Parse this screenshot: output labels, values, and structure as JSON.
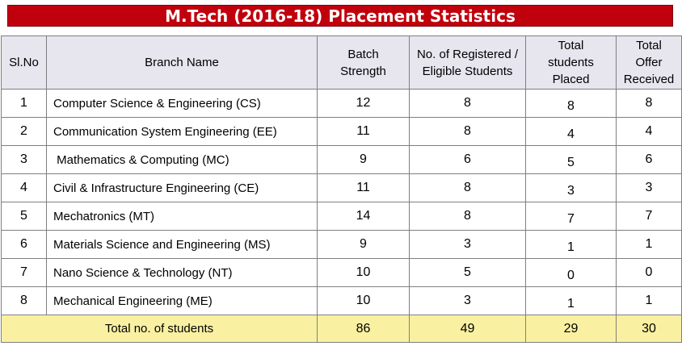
{
  "title": "M.Tech (2016-18) Placement Statistics",
  "headers": {
    "slno": "Sl.No",
    "branch": "Branch Name",
    "batch": "Batch Strength",
    "registered": "No. of Registered / Eligible Students",
    "placed": "Total students Placed",
    "offers": "Total Offer Received"
  },
  "rows": [
    {
      "slno": "1",
      "branch": "Computer Science & Engineering (CS)",
      "batch": "12",
      "registered": "8",
      "placed": "8",
      "offers": "8"
    },
    {
      "slno": "2",
      "branch": "Communication System Engineering (EE)",
      "batch": "11",
      "registered": "8",
      "placed": "4",
      "offers": "4"
    },
    {
      "slno": "3",
      "branch": " Mathematics & Computing (MC)",
      "batch": "9",
      "registered": "6",
      "placed": "5",
      "offers": "6"
    },
    {
      "slno": "4",
      "branch": "Civil & Infrastructure Engineering (CE)",
      "batch": "11",
      "registered": "8",
      "placed": "3",
      "offers": "3"
    },
    {
      "slno": "5",
      "branch": "Mechatronics (MT)",
      "batch": "14",
      "registered": "8",
      "placed": "7",
      "offers": "7"
    },
    {
      "slno": "6",
      "branch": "Materials Science and Engineering (MS)",
      "batch": "9",
      "registered": "3",
      "placed": "1",
      "offers": "1"
    },
    {
      "slno": "7",
      "branch": "Nano Science & Technology (NT)",
      "batch": "10",
      "registered": "5",
      "placed": "0",
      "offers": "0"
    },
    {
      "slno": "8",
      "branch": "Mechanical Engineering (ME)",
      "batch": "10",
      "registered": "3",
      "placed": "1",
      "offers": "1"
    }
  ],
  "totals": {
    "label": "Total no. of students",
    "batch": "86",
    "registered": "49",
    "placed": "29",
    "offers": "30"
  },
  "colors": {
    "title_bg": "#c0000c",
    "header_bg": "#e7e5ee",
    "total_bg": "#faf0a2"
  }
}
